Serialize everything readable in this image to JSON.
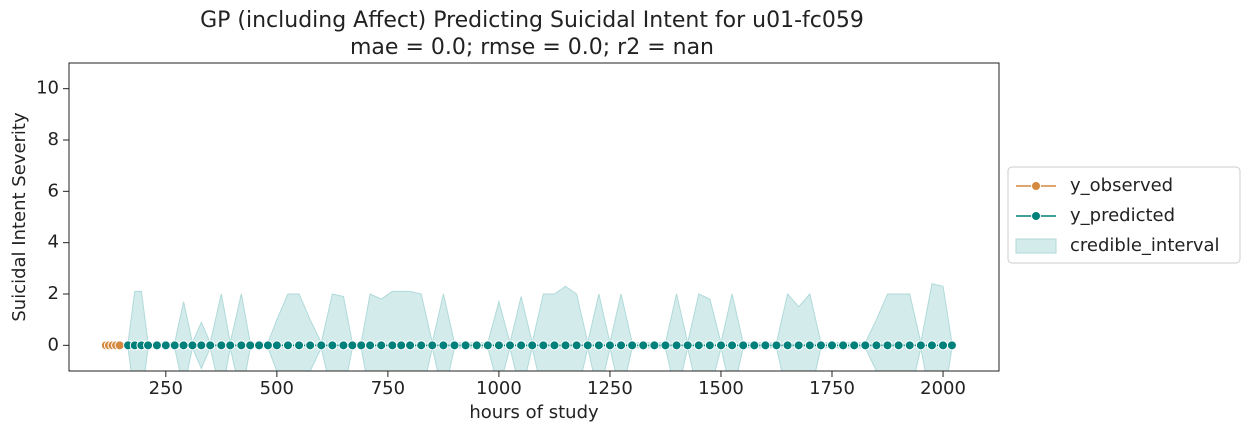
{
  "chart_data": {
    "type": "line",
    "title": "GP (including Affect) Predicting Suicidal Intent for u01-fc059",
    "subtitle": "mae = 0.0; rmse = 0.0; r2 = nan",
    "x_label": "hours of study",
    "y_label": "Suicidal Intent Severity",
    "xlim": [
      32,
      2126
    ],
    "ylim": [
      -1,
      11
    ],
    "xticks": [
      250,
      500,
      750,
      1000,
      1250,
      1500,
      1750,
      2000
    ],
    "yticks": [
      0,
      2,
      4,
      6,
      8,
      10
    ],
    "legend": "right",
    "series": [
      {
        "name": "y_observed",
        "color": "#d4893f",
        "x": [
          115,
          122,
          130,
          138,
          146
        ],
        "values": [
          0,
          0,
          0,
          0,
          0
        ]
      },
      {
        "name": "y_predicted",
        "color": "#00807a",
        "x": [
          165,
          180,
          195,
          210,
          230,
          250,
          270,
          290,
          310,
          330,
          350,
          375,
          395,
          420,
          440,
          460,
          480,
          500,
          525,
          550,
          575,
          600,
          625,
          650,
          670,
          690,
          710,
          735,
          760,
          780,
          800,
          825,
          850,
          875,
          900,
          925,
          950,
          975,
          1000,
          1025,
          1050,
          1075,
          1100,
          1125,
          1150,
          1175,
          1200,
          1225,
          1250,
          1275,
          1300,
          1325,
          1350,
          1375,
          1400,
          1425,
          1450,
          1475,
          1500,
          1525,
          1550,
          1575,
          1600,
          1625,
          1650,
          1675,
          1700,
          1725,
          1750,
          1775,
          1800,
          1825,
          1850,
          1875,
          1900,
          1925,
          1950,
          1975,
          2000,
          2020
        ],
        "values": [
          0,
          0,
          0,
          0,
          0,
          0,
          0,
          0,
          0,
          0,
          0,
          0,
          0,
          0,
          0,
          0,
          0,
          0,
          0,
          0,
          0,
          0,
          0,
          0,
          0,
          0,
          0,
          0,
          0,
          0,
          0,
          0,
          0,
          0,
          0,
          0,
          0,
          0,
          0,
          0,
          0,
          0,
          0,
          0,
          0,
          0,
          0,
          0,
          0,
          0,
          0,
          0,
          0,
          0,
          0,
          0,
          0,
          0,
          0,
          0,
          0,
          0,
          0,
          0,
          0,
          0,
          0,
          0,
          0,
          0,
          0,
          0,
          0,
          0,
          0,
          0,
          0,
          0,
          0,
          0
        ]
      }
    ],
    "band": {
      "name": "credible_interval",
      "color": "#b0dada",
      "upper": [
        0.1,
        2.1,
        2.1,
        0.1,
        0.1,
        0.1,
        0.1,
        1.7,
        0.1,
        0.9,
        0.1,
        2.0,
        0.1,
        2.0,
        0.1,
        0.1,
        0.1,
        1.0,
        2.0,
        2.0,
        1.0,
        0.1,
        2.0,
        1.9,
        0.1,
        0.1,
        2.0,
        1.8,
        2.1,
        2.1,
        2.1,
        2.0,
        0.1,
        2.0,
        0.1,
        0.1,
        0.1,
        0.1,
        1.7,
        0.1,
        1.9,
        0.1,
        2.0,
        2.0,
        2.3,
        2.0,
        0.1,
        2.0,
        0.1,
        2.0,
        0.1,
        0.1,
        0.1,
        0.1,
        2.0,
        0.1,
        2.0,
        1.8,
        0.1,
        2.0,
        0.1,
        0.1,
        0.1,
        0.1,
        2.0,
        1.5,
        2.0,
        0.1,
        0.1,
        0.1,
        0.1,
        0.1,
        1.0,
        2.0,
        2.0,
        2.0,
        0.1,
        2.4,
        2.3,
        0.1
      ],
      "lower": [
        -0.1,
        -2.1,
        -2.1,
        -0.1,
        -0.1,
        -0.1,
        -0.1,
        -1.7,
        -0.1,
        -0.9,
        -0.1,
        -2.0,
        -0.1,
        -2.0,
        -0.1,
        -0.1,
        -0.1,
        -1.0,
        -2.0,
        -2.0,
        -1.0,
        -0.1,
        -2.0,
        -1.9,
        -0.1,
        -0.1,
        -2.0,
        -1.8,
        -2.1,
        -2.1,
        -2.1,
        -2.0,
        -0.1,
        -2.0,
        -0.1,
        -0.1,
        -0.1,
        -0.1,
        -1.7,
        -0.1,
        -1.9,
        -0.1,
        -2.0,
        -2.0,
        -2.3,
        -2.0,
        -0.1,
        -2.0,
        -0.1,
        -2.0,
        -0.1,
        -0.1,
        -0.1,
        -0.1,
        -2.0,
        -0.1,
        -2.0,
        -1.8,
        -0.1,
        -2.0,
        -0.1,
        -0.1,
        -0.1,
        -0.1,
        -2.0,
        -1.5,
        -2.0,
        -0.1,
        -0.1,
        -0.1,
        -0.1,
        -0.1,
        -1.0,
        -2.0,
        -2.0,
        -2.0,
        -0.1,
        -2.4,
        -2.3,
        -0.1
      ]
    }
  }
}
